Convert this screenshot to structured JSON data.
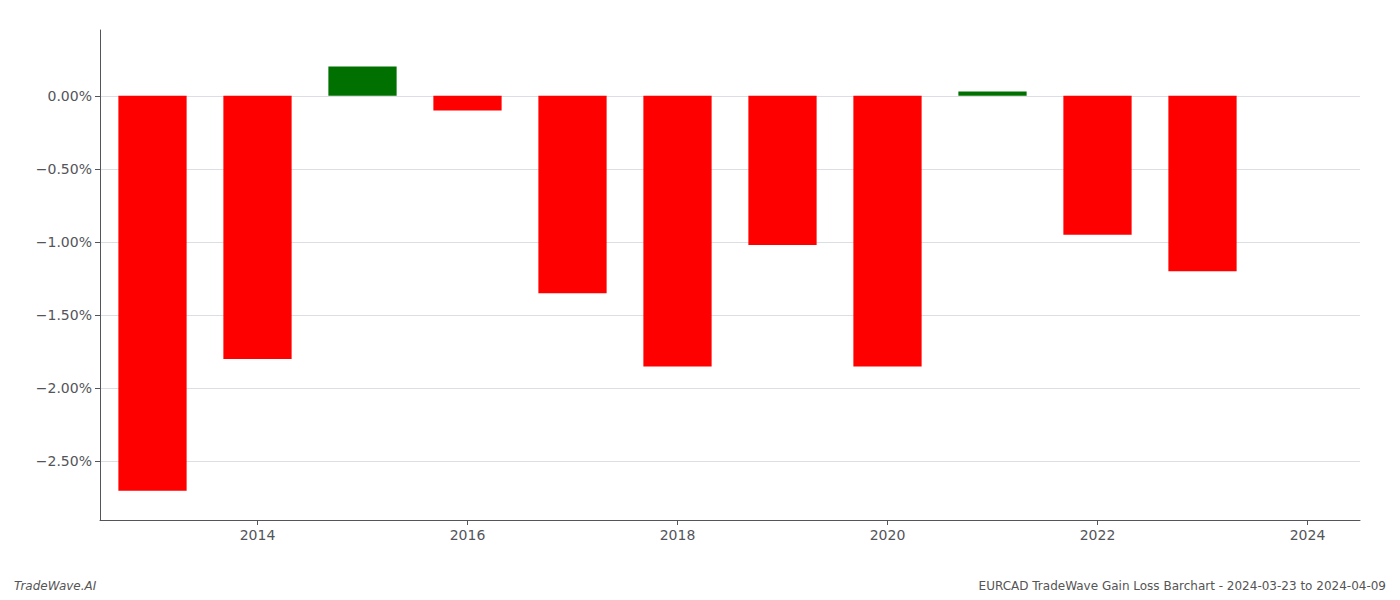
{
  "chart_data": {
    "type": "bar",
    "x": [
      2013,
      2014,
      2015,
      2016,
      2017,
      2018,
      2019,
      2020,
      2021,
      2022,
      2023
    ],
    "values": [
      -2.7,
      -1.8,
      0.2,
      -0.1,
      -1.35,
      -1.85,
      -1.02,
      -1.85,
      0.03,
      -0.95,
      -1.2
    ],
    "colors": [
      "#ff0000",
      "#ff0000",
      "#007000",
      "#ff0000",
      "#ff0000",
      "#ff0000",
      "#ff0000",
      "#ff0000",
      "#007000",
      "#ff0000",
      "#ff0000"
    ],
    "xlim": [
      2012.5,
      2024.5
    ],
    "xticks": [
      2014,
      2016,
      2018,
      2020,
      2022,
      2024
    ],
    "ylim": [
      -2.9,
      0.45
    ],
    "yticks": [
      {
        "value": 0.0,
        "label": "0.00%"
      },
      {
        "value": -0.5,
        "label": "−0.50%"
      },
      {
        "value": -1.0,
        "label": "−1.00%"
      },
      {
        "value": -1.5,
        "label": "−1.50%"
      },
      {
        "value": -2.0,
        "label": "−2.00%"
      },
      {
        "value": -2.5,
        "label": "−2.50%"
      }
    ],
    "grid": true,
    "annotations": [
      "TradeWave.AI",
      "EURCAD TradeWave Gain Loss Barchart - 2024-03-23 to 2024-04-09"
    ]
  }
}
